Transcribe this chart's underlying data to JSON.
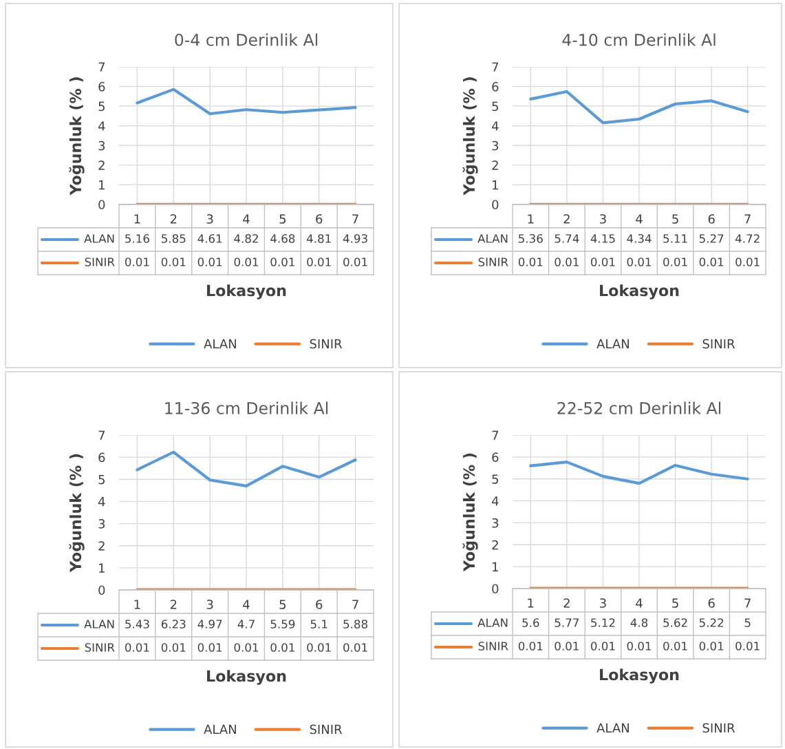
{
  "chart_data": [
    {
      "type": "line",
      "title": "0-4 cm Derinlik Al",
      "xlabel": "Lokasyon",
      "ylabel": "Yoğunluk (% )",
      "categories": [
        "1",
        "2",
        "3",
        "4",
        "5",
        "6",
        "7"
      ],
      "ylim": [
        0,
        7
      ],
      "yticks": [
        0,
        1,
        2,
        3,
        4,
        5,
        6,
        7
      ],
      "grid": true,
      "legend": "bottom",
      "data_labels": true,
      "series": [
        {
          "name": "ALAN",
          "color": "#5b9bd5",
          "values": [
            5.16,
            5.85,
            4.61,
            4.82,
            4.68,
            4.81,
            4.93
          ]
        },
        {
          "name": "SINIR",
          "color": "#ed7d31",
          "values": [
            0.01,
            0.01,
            0.01,
            0.01,
            0.01,
            0.01,
            0.01
          ]
        }
      ]
    },
    {
      "type": "line",
      "title": "4-10 cm Derinlik Al",
      "xlabel": "Lokasyon",
      "ylabel": "Yoğunluk (% )",
      "categories": [
        "1",
        "2",
        "3",
        "4",
        "5",
        "6",
        "7"
      ],
      "ylim": [
        0,
        7
      ],
      "yticks": [
        0,
        1,
        2,
        3,
        4,
        5,
        6,
        7
      ],
      "grid": true,
      "legend": "bottom",
      "data_labels": true,
      "series": [
        {
          "name": "ALAN",
          "color": "#5b9bd5",
          "values": [
            5.36,
            5.74,
            4.15,
            4.34,
            5.11,
            5.27,
            4.72
          ]
        },
        {
          "name": "SINIR",
          "color": "#ed7d31",
          "values": [
            0.01,
            0.01,
            0.01,
            0.01,
            0.01,
            0.01,
            0.01
          ]
        }
      ]
    },
    {
      "type": "line",
      "title": "11-36 cm Derinlik Al",
      "xlabel": "Lokasyon",
      "ylabel": "Yoğunluk (% )",
      "categories": [
        "1",
        "2",
        "3",
        "4",
        "5",
        "6",
        "7"
      ],
      "ylim": [
        0,
        7
      ],
      "yticks": [
        0,
        1,
        2,
        3,
        4,
        5,
        6,
        7
      ],
      "grid": true,
      "legend": "bottom",
      "data_labels": true,
      "series": [
        {
          "name": "ALAN",
          "color": "#5b9bd5",
          "values": [
            5.43,
            6.23,
            4.97,
            4.7,
            5.59,
            5.1,
            5.88
          ]
        },
        {
          "name": "SINIR",
          "color": "#ed7d31",
          "values": [
            0.01,
            0.01,
            0.01,
            0.01,
            0.01,
            0.01,
            0.01
          ]
        }
      ]
    },
    {
      "type": "line",
      "title": "22-52 cm Derinlik Al",
      "xlabel": "Lokasyon",
      "ylabel": "Yoğunluk (% )",
      "categories": [
        "1",
        "2",
        "3",
        "4",
        "5",
        "6",
        "7"
      ],
      "ylim": [
        0,
        7
      ],
      "yticks": [
        0,
        1,
        2,
        3,
        4,
        5,
        6,
        7
      ],
      "grid": true,
      "legend": "bottom",
      "data_labels": true,
      "series": [
        {
          "name": "ALAN",
          "color": "#5b9bd5",
          "values": [
            5.6,
            5.77,
            5.12,
            4.8,
            5.62,
            5.22,
            5
          ]
        },
        {
          "name": "SINIR",
          "color": "#ed7d31",
          "values": [
            0.01,
            0.01,
            0.01,
            0.01,
            0.01,
            0.01,
            0.01
          ]
        }
      ]
    }
  ]
}
